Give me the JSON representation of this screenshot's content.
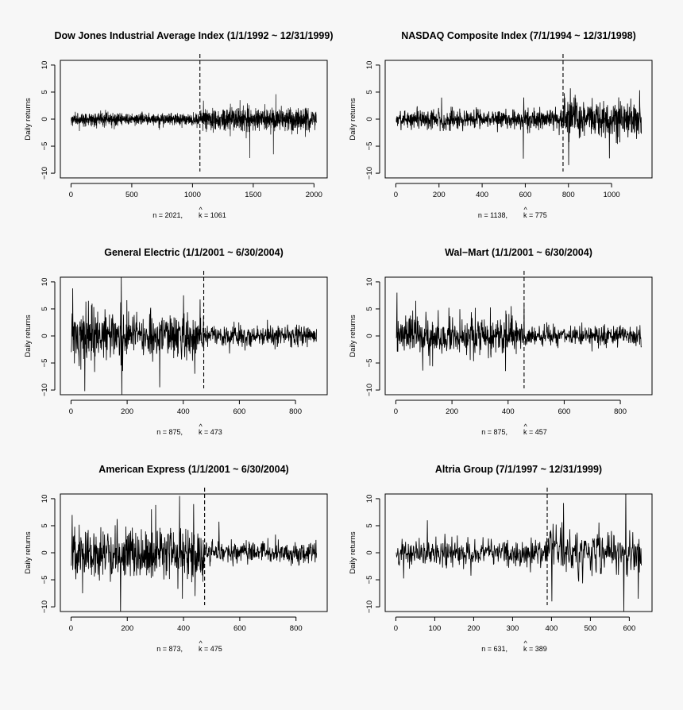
{
  "chart_data": [
    {
      "type": "line",
      "title": "Dow Jones Industrial Average Index (1/1/1992 ~ 12/31/1999)",
      "ylabel": "Daily returns",
      "xlim": [
        0,
        2021
      ],
      "ylim": [
        -10,
        10
      ],
      "xticks": [
        0,
        500,
        1000,
        1500,
        2000
      ],
      "yticks": [
        -10,
        -5,
        0,
        5,
        10
      ],
      "n_label": "n = 2021,",
      "k_hat": "^",
      "k_label": "k = 1061",
      "n": 2021,
      "change_point": 1061,
      "volatility_before": 0.55,
      "volatility_after": 1.05,
      "spikes": [
        [
          1470,
          -7.2
        ],
        [
          1665,
          -6.5
        ],
        [
          1685,
          4.6
        ],
        [
          1390,
          3.5
        ]
      ]
    },
    {
      "type": "line",
      "title": "NASDAQ Composite Index (7/1/1994 ~ 12/31/1998)",
      "ylabel": "Daily returns",
      "xlim": [
        0,
        1138
      ],
      "ylim": [
        -10,
        10
      ],
      "xticks": [
        0,
        200,
        400,
        600,
        800,
        1000
      ],
      "yticks": [
        -10,
        -5,
        0,
        5,
        10
      ],
      "n_label": "n = 1138,",
      "k_hat": "^",
      "k_label": "k = 775",
      "n": 1138,
      "change_point": 775,
      "volatility_before": 0.9,
      "volatility_after": 1.6,
      "spikes": [
        [
          590,
          -7.3
        ],
        [
          592,
          4.0
        ],
        [
          800,
          -8.5
        ],
        [
          808,
          5.7
        ],
        [
          780,
          4.8
        ],
        [
          830,
          4.5
        ]
      ]
    },
    {
      "type": "line",
      "title": "General Electric (1/1/2001 ~ 6/30/2004)",
      "ylabel": "Daily returns",
      "xlim": [
        0,
        875
      ],
      "ylim": [
        -10,
        10
      ],
      "xticks": [
        0,
        200,
        400,
        600,
        800
      ],
      "yticks": [
        -10,
        -5,
        0,
        5,
        10
      ],
      "n_label": "n = 875,",
      "k_hat": "^",
      "k_label": "k = 473",
      "n": 875,
      "change_point": 473,
      "volatility_before": 2.2,
      "volatility_after": 1.0,
      "spikes": [
        [
          5,
          8.8
        ],
        [
          48,
          -10.2
        ],
        [
          178,
          11.0
        ],
        [
          180,
          -11.3
        ],
        [
          315,
          -9.5
        ],
        [
          400,
          7.5
        ],
        [
          440,
          -7.0
        ]
      ]
    },
    {
      "type": "line",
      "title": "Wal−Mart (1/1/2001 ~ 6/30/2004)",
      "ylabel": "Daily returns",
      "xlim": [
        0,
        875
      ],
      "ylim": [
        -10,
        10
      ],
      "xticks": [
        0,
        200,
        400,
        600,
        800
      ],
      "yticks": [
        -10,
        -5,
        0,
        5,
        10
      ],
      "n_label": "n = 875,",
      "k_hat": "^",
      "k_label": "k = 457",
      "n": 875,
      "change_point": 457,
      "volatility_before": 1.8,
      "volatility_after": 0.9,
      "spikes": [
        [
          3,
          8.0
        ],
        [
          70,
          6.5
        ],
        [
          120,
          -5.5
        ],
        [
          390,
          -6.5
        ],
        [
          410,
          5.5
        ]
      ]
    },
    {
      "type": "line",
      "title": "American Express (1/1/2001 ~ 6/30/2004)",
      "ylabel": "Daily returns",
      "xlim": [
        0,
        873
      ],
      "ylim": [
        -10,
        10
      ],
      "xticks": [
        0,
        200,
        400,
        600,
        800
      ],
      "yticks": [
        -10,
        -5,
        0,
        5,
        10
      ],
      "n_label": "n = 873,",
      "k_hat": "^",
      "k_label": "k = 475",
      "n": 873,
      "change_point": 475,
      "volatility_before": 2.3,
      "volatility_after": 1.0,
      "spikes": [
        [
          3,
          7.0
        ],
        [
          175,
          -11.5
        ],
        [
          385,
          10.5
        ],
        [
          395,
          -8.5
        ],
        [
          435,
          9.0
        ],
        [
          440,
          -8.0
        ],
        [
          40,
          -7.5
        ]
      ]
    },
    {
      "type": "line",
      "title": "Altria Group (7/1/1997 ~ 12/31/1999)",
      "ylabel": "Daily returns",
      "xlim": [
        0,
        631
      ],
      "ylim": [
        -10,
        10
      ],
      "xticks": [
        0,
        100,
        200,
        300,
        400,
        500,
        600
      ],
      "yticks": [
        -10,
        -5,
        0,
        5,
        10
      ],
      "n_label": "n = 631,",
      "k_hat": "^",
      "k_label": "k = 389",
      "n": 631,
      "change_point": 389,
      "volatility_before": 1.3,
      "volatility_after": 2.0,
      "spikes": [
        [
          80,
          6.0
        ],
        [
          400,
          -9.0
        ],
        [
          430,
          9.2
        ],
        [
          590,
          11.5
        ],
        [
          585,
          -11.0
        ],
        [
          622,
          -8.5
        ]
      ]
    }
  ]
}
